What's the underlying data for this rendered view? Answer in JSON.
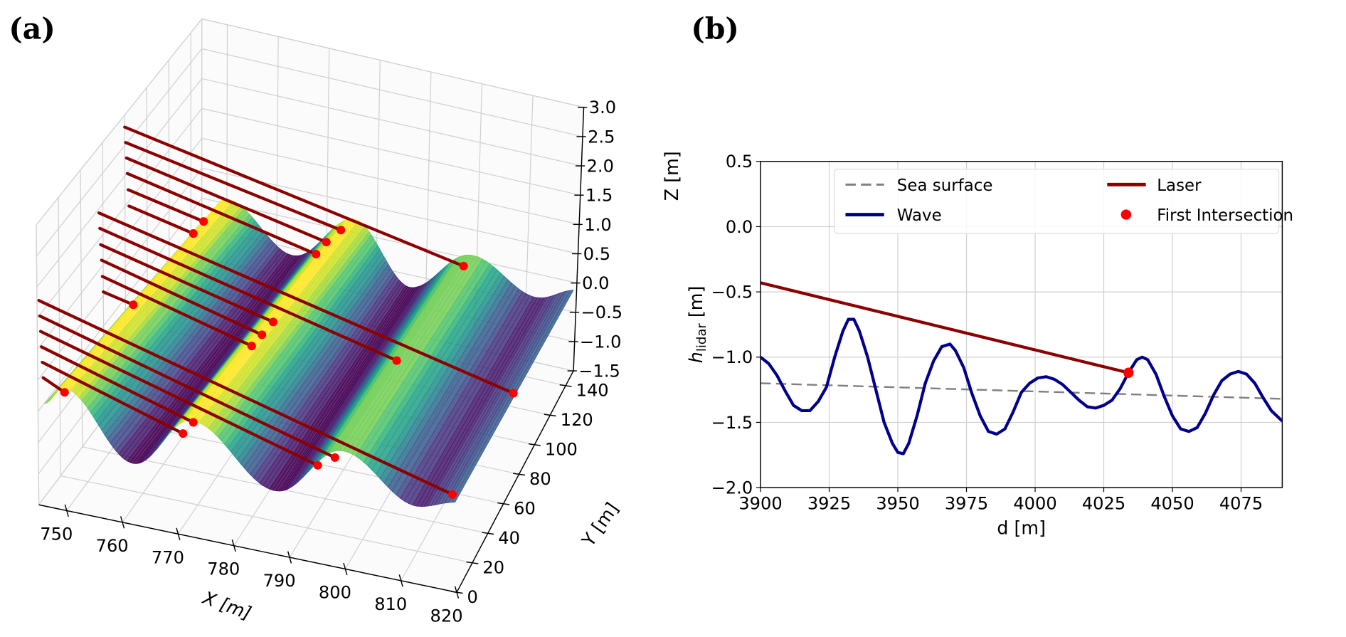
{
  "figure": {
    "panel_a_label": "(a)",
    "panel_b_label": "(b)"
  },
  "chart_data": [
    {
      "panel": "(a)",
      "type": "surface3d",
      "xlabel": "X [m]",
      "ylabel": "Y [m]",
      "zlabel": "Z [m]",
      "xlim": [
        745,
        820
      ],
      "ylim": [
        0,
        150
      ],
      "zlim": [
        -1.5,
        3.0
      ],
      "x_ticks": [
        "750",
        "760",
        "770",
        "780",
        "790",
        "800",
        "810",
        "820"
      ],
      "y_ticks": [
        "0",
        "20",
        "40",
        "60",
        "80",
        "100",
        "120",
        "140"
      ],
      "z_ticks": [
        "3.0",
        "2.5",
        "2.0",
        "1.5",
        "1.0",
        "0.5",
        "0.0",
        "−0.5",
        "−1.0",
        "−1.5"
      ],
      "grid": true,
      "colormap": "viridis",
      "surface_profile": {
        "x": [
          745,
          750,
          763,
          777,
          791,
          805,
          815,
          820
        ],
        "z": [
          0.6,
          1.0,
          -1.2,
          1.0,
          -1.2,
          0.6,
          -1.0,
          -0.6
        ]
      },
      "laser_count": 18,
      "laser_color": "#8b0000",
      "intersection_color": "#ff0000"
    },
    {
      "panel": "(b)",
      "type": "line",
      "xlabel": "d [m]",
      "ylabel_main": "h",
      "ylabel_sub": "lidar",
      "ylabel_unit": " [m]",
      "xlim": [
        3900,
        4090
      ],
      "ylim": [
        -2.0,
        0.5
      ],
      "x_ticks": [
        "3900",
        "3925",
        "3950",
        "3975",
        "4000",
        "4025",
        "4050",
        "4075"
      ],
      "y_ticks": [
        "0.5",
        "0.0",
        "−0.5",
        "−1.0",
        "−1.5",
        "−2.0"
      ],
      "grid": true,
      "legend": {
        "position": "top"
      },
      "series": [
        {
          "name": "Sea surface",
          "style": "dashed",
          "color": "#808080",
          "x": [
            3900,
            4090
          ],
          "y": [
            -1.2,
            -1.32
          ]
        },
        {
          "name": "Laser",
          "style": "solid",
          "color": "#8b0000",
          "x": [
            3900,
            4034
          ],
          "y": [
            -0.43,
            -1.12
          ]
        },
        {
          "name": "Wave",
          "style": "solid",
          "color": "#00008b",
          "x": [
            3900,
            3903,
            3906,
            3909,
            3912,
            3915,
            3918,
            3921,
            3924,
            3927,
            3930,
            3932,
            3934,
            3936,
            3939,
            3942,
            3945,
            3948,
            3950,
            3952,
            3954,
            3957,
            3960,
            3963,
            3966,
            3969,
            3971,
            3974,
            3977,
            3980,
            3983,
            3986,
            3989,
            3992,
            3995,
            3998,
            4001,
            4004,
            4007,
            4010,
            4013,
            4016,
            4019,
            4022,
            4025,
            4028,
            4031,
            4034,
            4037,
            4039,
            4041,
            4044,
            4047,
            4050,
            4053,
            4056,
            4059,
            4062,
            4065,
            4068,
            4071,
            4074,
            4077,
            4080,
            4083,
            4086,
            4090
          ],
          "y": [
            -1.0,
            -1.05,
            -1.14,
            -1.26,
            -1.37,
            -1.41,
            -1.41,
            -1.34,
            -1.23,
            -1.0,
            -0.8,
            -0.71,
            -0.71,
            -0.8,
            -1.0,
            -1.25,
            -1.5,
            -1.66,
            -1.73,
            -1.74,
            -1.66,
            -1.45,
            -1.2,
            -1.03,
            -0.92,
            -0.9,
            -0.95,
            -1.08,
            -1.28,
            -1.45,
            -1.57,
            -1.59,
            -1.55,
            -1.42,
            -1.27,
            -1.2,
            -1.16,
            -1.15,
            -1.17,
            -1.21,
            -1.27,
            -1.33,
            -1.38,
            -1.39,
            -1.37,
            -1.33,
            -1.24,
            -1.12,
            -1.02,
            -1.0,
            -1.02,
            -1.13,
            -1.3,
            -1.45,
            -1.55,
            -1.57,
            -1.54,
            -1.43,
            -1.29,
            -1.18,
            -1.13,
            -1.11,
            -1.13,
            -1.2,
            -1.31,
            -1.41,
            -1.49
          ]
        },
        {
          "name": "First Intersection",
          "style": "marker",
          "color": "#ff0000",
          "x": [
            4034
          ],
          "y": [
            -1.12
          ]
        }
      ]
    }
  ]
}
